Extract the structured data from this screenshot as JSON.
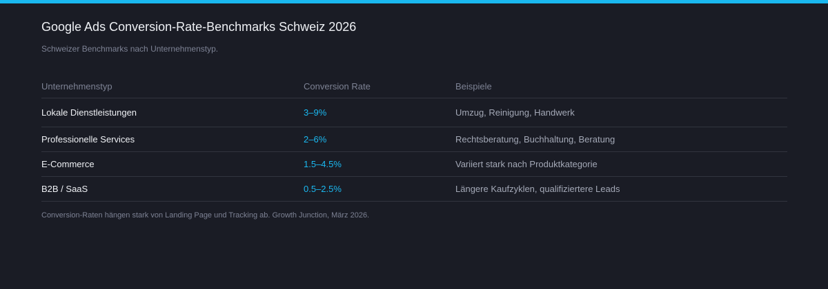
{
  "colors": {
    "background": "#1a1c25",
    "accent": "#1ab8f0",
    "text_primary": "#eef0f4",
    "text_muted": "#7d8294",
    "divider": "#32353f"
  },
  "chart_data": {
    "type": "table",
    "title": "Google Ads Conversion-Rate-Benchmarks Schweiz 2026",
    "subtitle": "Schweizer Benchmarks nach Unternehmenstyp.",
    "columns": [
      "Unternehmenstyp",
      "Conversion Rate",
      "Beispiele"
    ],
    "rows": [
      {
        "type": "Lokale Dienstleistungen",
        "rate": "3–9%",
        "examples": "Umzug, Reinigung, Handwerk"
      },
      {
        "type": "Professionelle Services",
        "rate": "2–6%",
        "examples": "Rechtsberatung, Buchhaltung, Beratung"
      },
      {
        "type": "E-Commerce",
        "rate": "1.5–4.5%",
        "examples": "Variiert stark nach Produktkategorie"
      },
      {
        "type": "B2B / SaaS",
        "rate": "0.5–2.5%",
        "examples": "Längere Kaufzyklen, qualifiziertere Leads"
      }
    ],
    "footnote": "Conversion-Raten hängen stark von Landing Page und Tracking ab. Growth Junction, März 2026."
  }
}
